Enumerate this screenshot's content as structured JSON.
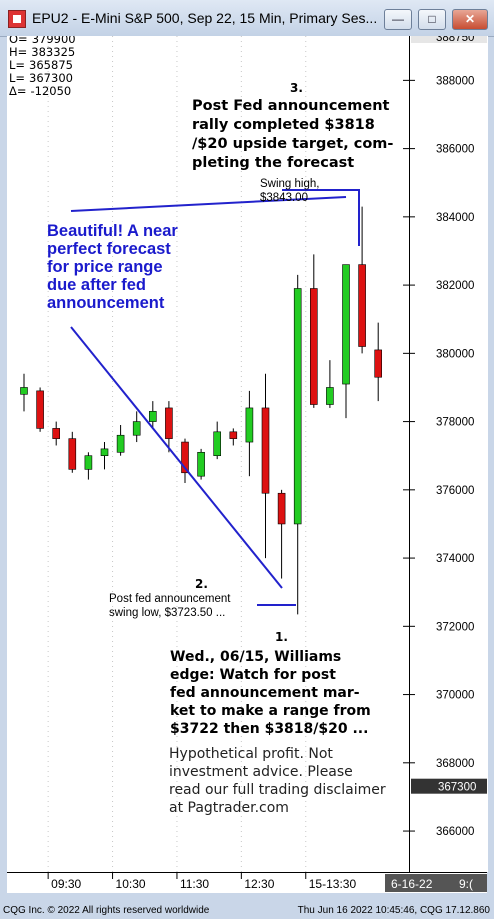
{
  "window": {
    "title": "EPU2 - E-Mini S&P 500, Sep 22, 15 Min, Primary Ses...",
    "minimize_label": "—",
    "maximize_label": "□",
    "close_label": "✕"
  },
  "ohlc_box": [
    {
      "label": "O=",
      "value": "379900"
    },
    {
      "label": "H=",
      "value": "383325"
    },
    {
      "label": "L=",
      "value": "365875"
    },
    {
      "label": "L=",
      "value": "367300"
    },
    {
      "label": "Δ=",
      "value": "-12050"
    }
  ],
  "annotations": {
    "forecast": [
      "Beautiful! A near",
      "perfect forecast",
      "for price range",
      "due after fed",
      "announcement"
    ],
    "n3": "3.",
    "rally": [
      "Post Fed announcement",
      "rally completed $3818",
      "/$20 upside target, com-",
      "pleting the forecast"
    ],
    "swing_high": [
      "Swing high,",
      "$3843.00"
    ],
    "n2": "2.",
    "swing_low": [
      "Post fed announcement",
      "swing low, $3723.50 ..."
    ],
    "n1": "1.",
    "williams": [
      "Wed., 06/15, Williams",
      "edge: Watch for post",
      "fed announcement mar-",
      "ket to make a range from",
      "$3722 then $3818/$20 ..."
    ],
    "disclaimer": [
      "Hypothetical profit. Not",
      "investment advice. Please",
      "read our full trading disclaimer",
      "at Pagtrader.com"
    ]
  },
  "axis": {
    "top_partial_label": "388750",
    "last_price_label": "367300",
    "date_label": "6-16-22",
    "date_suffix": "9:("
  },
  "statusbar": {
    "left": "CQG Inc. © 2022 All rights reserved worldwide",
    "right": "Thu Jun 16 2022 10:45:46, CQG 17.12.860"
  },
  "colors": {
    "up": "#22cc22",
    "down": "#dd1111",
    "annotation_blue": "#1a1acc",
    "trendline": "#2222cc"
  },
  "chart_data": {
    "type": "candlestick",
    "title": "EPU2 - E-Mini S&P 500, Sep 22, 15 Min, Primary Ses...",
    "ylim": [
      3648,
      3893
    ],
    "y_ticks": [
      3660,
      3680,
      3700,
      3720,
      3740,
      3760,
      3780,
      3800,
      3820,
      3840,
      3860,
      3880
    ],
    "y_tick_labels": [
      "366000",
      "368000",
      "370000",
      "372000",
      "374000",
      "376000",
      "378000",
      "380000",
      "382000",
      "384000",
      "386000",
      "388000"
    ],
    "x_ticks": [
      {
        "label": "09:30",
        "index": 2
      },
      {
        "label": "10:30",
        "index": 6
      },
      {
        "label": "11:30",
        "index": 10
      },
      {
        "label": "12:30",
        "index": 14
      },
      {
        "label": "15-13:30",
        "index": 18
      }
    ],
    "candles": [
      {
        "o": 3788,
        "h": 3794,
        "l": 3783,
        "c": 3790
      },
      {
        "o": 3789,
        "h": 3790,
        "l": 3777,
        "c": 3778
      },
      {
        "o": 3778,
        "h": 3780,
        "l": 3773,
        "c": 3775
      },
      {
        "o": 3775,
        "h": 3777,
        "l": 3765,
        "c": 3766
      },
      {
        "o": 3766,
        "h": 3771,
        "l": 3763,
        "c": 3770
      },
      {
        "o": 3770,
        "h": 3774,
        "l": 3766,
        "c": 3772
      },
      {
        "o": 3771,
        "h": 3779,
        "l": 3770,
        "c": 3776
      },
      {
        "o": 3776,
        "h": 3783,
        "l": 3774,
        "c": 3780
      },
      {
        "o": 3780,
        "h": 3786,
        "l": 3778,
        "c": 3783
      },
      {
        "o": 3784,
        "h": 3786,
        "l": 3771,
        "c": 3775
      },
      {
        "o": 3774,
        "h": 3775,
        "l": 3762,
        "c": 3765
      },
      {
        "o": 3764,
        "h": 3772,
        "l": 3763,
        "c": 3771
      },
      {
        "o": 3770,
        "h": 3780,
        "l": 3769,
        "c": 3777
      },
      {
        "o": 3777,
        "h": 3778,
        "l": 3773,
        "c": 3775
      },
      {
        "o": 3774,
        "h": 3789,
        "l": 3764,
        "c": 3784
      },
      {
        "o": 3784,
        "h": 3794,
        "l": 3740,
        "c": 3759
      },
      {
        "o": 3759,
        "h": 3760,
        "l": 3734,
        "c": 3750
      },
      {
        "o": 3750,
        "h": 3823,
        "l": 3723.5,
        "c": 3819
      },
      {
        "o": 3819,
        "h": 3829,
        "l": 3784,
        "c": 3785
      },
      {
        "o": 3785,
        "h": 3798,
        "l": 3784,
        "c": 3790
      },
      {
        "o": 3791,
        "h": 3826,
        "l": 3781,
        "c": 3826
      },
      {
        "o": 3826,
        "h": 3843,
        "l": 3800,
        "c": 3802
      },
      {
        "o": 3801,
        "h": 3809,
        "l": 3786,
        "c": 3793
      }
    ]
  }
}
